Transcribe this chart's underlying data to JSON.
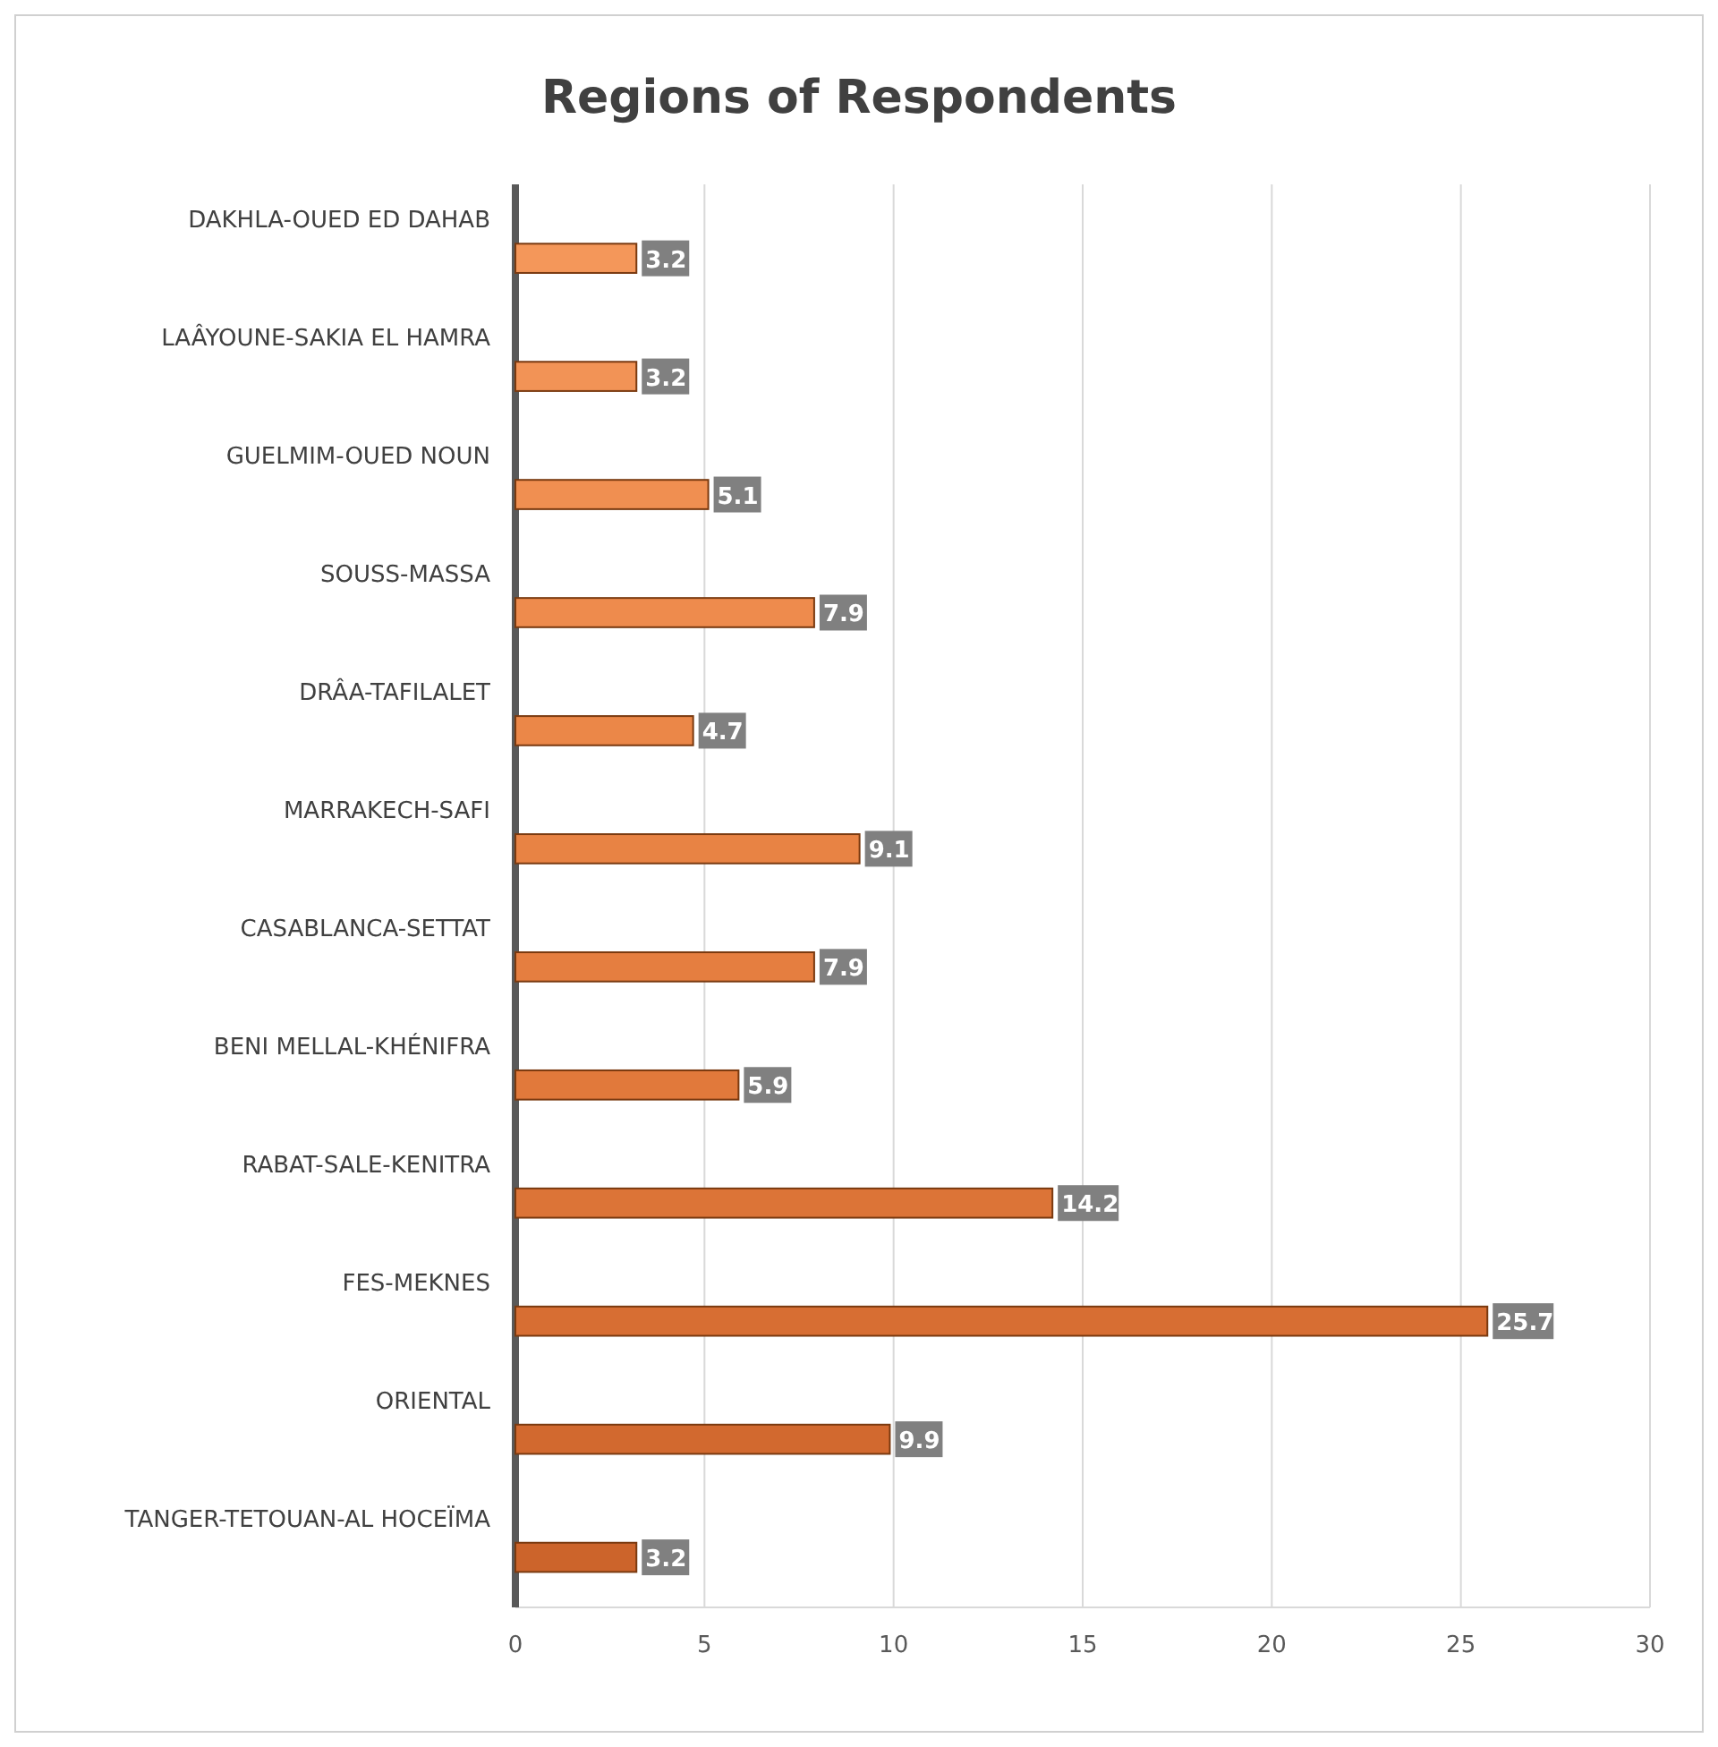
{
  "chart_data": {
    "type": "bar",
    "orientation": "horizontal",
    "title": "Regions of Respondents",
    "categories": [
      "DAKHLA-OUED ED DAHAB",
      "LAÂYOUNE-SAKIA EL HAMRA",
      "GUELMIM-OUED NOUN",
      "SOUSS-MASSA",
      "DRÂA-TAFILALET",
      "MARRAKECH-SAFI",
      "CASABLANCA-SETTAT",
      "BENI MELLAL-KHÉNIFRA",
      "RABAT-SALE-KENITRA",
      "FES-MEKNES",
      "ORIENTAL",
      "TANGER-TETOUAN-AL HOCEÏMA"
    ],
    "values": [
      3.2,
      3.2,
      5.1,
      7.9,
      4.7,
      9.1,
      7.9,
      5.9,
      14.2,
      25.7,
      9.9,
      3.2
    ],
    "colors": [
      "#f4975a",
      "#f29356",
      "#f08f51",
      "#ee8b4d",
      "#eb8748",
      "#e88344",
      "#e57e40",
      "#e1793b",
      "#dc7437",
      "#d76e33",
      "#d2692f",
      "#cc642b"
    ],
    "xlim": [
      0,
      30
    ],
    "xticks": [
      0,
      5,
      10,
      15,
      20,
      25,
      30
    ],
    "grid": "x",
    "data_labels": true
  }
}
